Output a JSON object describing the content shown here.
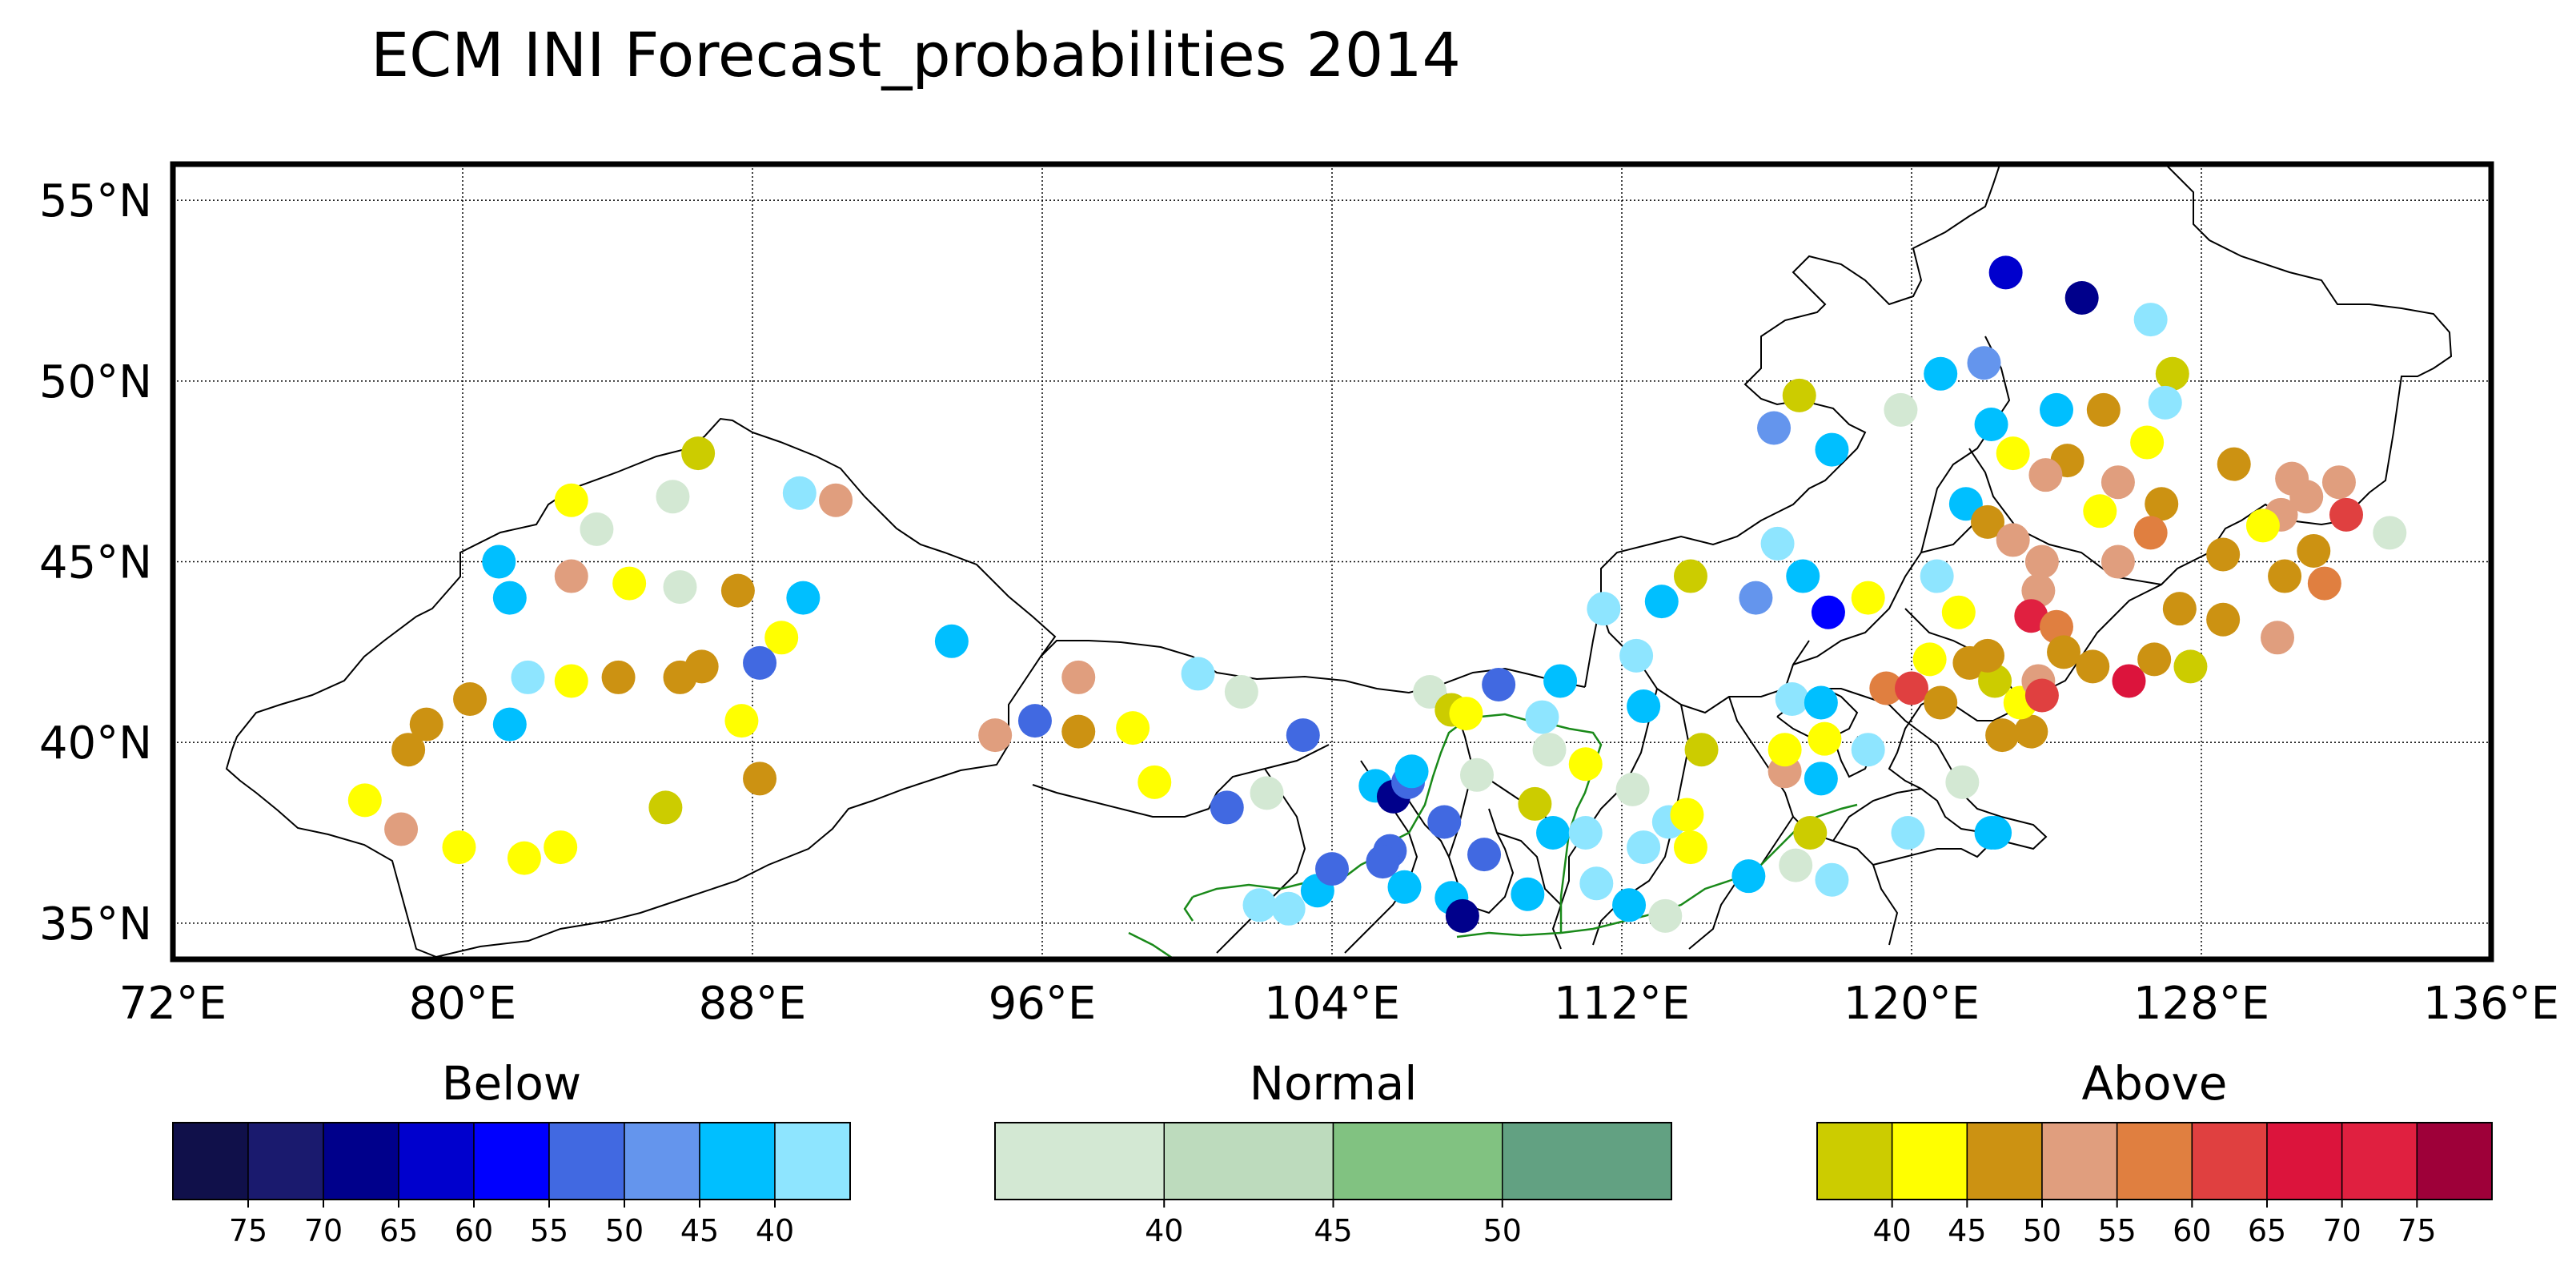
{
  "title": "ECM INI Forecast_probabilities 2014",
  "map": {
    "lon_range": [
      72,
      136
    ],
    "lat_range": [
      34,
      56
    ],
    "lon_ticks": [
      {
        "value": 72,
        "label": "72°E"
      },
      {
        "value": 80,
        "label": "80°E"
      },
      {
        "value": 88,
        "label": "88°E"
      },
      {
        "value": 96,
        "label": "96°E"
      },
      {
        "value": 104,
        "label": "104°E"
      },
      {
        "value": 112,
        "label": "112°E"
      },
      {
        "value": 120,
        "label": "120°E"
      },
      {
        "value": 128,
        "label": "128°E"
      },
      {
        "value": 136,
        "label": "136°E"
      }
    ],
    "lat_ticks": [
      {
        "value": 55,
        "label": "55°N"
      },
      {
        "value": 50,
        "label": "50°N"
      },
      {
        "value": 45,
        "label": "45°N"
      },
      {
        "value": 40,
        "label": "40°N"
      },
      {
        "value": 35,
        "label": "35°N"
      }
    ],
    "grid": true,
    "boundary_color": "#000000",
    "river_color": "#1a8a1a"
  },
  "colors": {
    "B75": "#10104a",
    "B70": "#1a1a6e",
    "B65": "#00008b",
    "B60": "#0000cd",
    "B55": "#0000ff",
    "B50": "#4169e1",
    "B45": "#6495ed",
    "B40": "#00bfff",
    "B35": "#8ee5ff",
    "N35": "#d3e8d3",
    "N40": "#bddbbd",
    "N45": "#81c281",
    "N50": "#62a182",
    "A35": "#cccc00",
    "A40": "#ffff00",
    "A45": "#cc9212",
    "A50": "#e09e7e",
    "A55": "#e07f40",
    "A60": "#e04040",
    "A65": "#dc143c",
    "A70": "#e02040",
    "A75": "#9e0039"
  },
  "colorbars": [
    {
      "label": "Below",
      "swatches": [
        "B75",
        "B70",
        "B65",
        "B60",
        "B55",
        "B50",
        "B45",
        "B40",
        "B35"
      ],
      "ticks": [
        "75",
        "70",
        "65",
        "60",
        "55",
        "50",
        "45",
        "40"
      ]
    },
    {
      "label": "Normal",
      "swatches": [
        "N35",
        "N40",
        "N45",
        "N50"
      ],
      "ticks": [
        "40",
        "45",
        "50"
      ]
    },
    {
      "label": "Above",
      "swatches": [
        "A35",
        "A40",
        "A45",
        "A50",
        "A55",
        "A60",
        "A65",
        "A70",
        "A75"
      ],
      "ticks": [
        "40",
        "45",
        "50",
        "55",
        "60",
        "65",
        "70",
        "75"
      ]
    }
  ],
  "stations": [
    {
      "lon": 83.0,
      "lat": 46.7,
      "c": "A40"
    },
    {
      "lon": 83.7,
      "lat": 45.9,
      "c": "N35"
    },
    {
      "lon": 85.8,
      "lat": 46.8,
      "c": "N35"
    },
    {
      "lon": 86.5,
      "lat": 48.0,
      "c": "A35"
    },
    {
      "lon": 89.3,
      "lat": 46.9,
      "c": "B35"
    },
    {
      "lon": 90.3,
      "lat": 46.7,
      "c": "A50"
    },
    {
      "lon": 81.0,
      "lat": 45.0,
      "c": "B40"
    },
    {
      "lon": 81.3,
      "lat": 44.0,
      "c": "B40"
    },
    {
      "lon": 83.0,
      "lat": 44.6,
      "c": "A50"
    },
    {
      "lon": 84.6,
      "lat": 44.4,
      "c": "A40"
    },
    {
      "lon": 86.0,
      "lat": 44.3,
      "c": "N35"
    },
    {
      "lon": 87.6,
      "lat": 44.2,
      "c": "A45"
    },
    {
      "lon": 89.4,
      "lat": 44.0,
      "c": "B40"
    },
    {
      "lon": 88.8,
      "lat": 42.9,
      "c": "A40"
    },
    {
      "lon": 88.2,
      "lat": 42.2,
      "c": "B50"
    },
    {
      "lon": 86.6,
      "lat": 42.1,
      "c": "A45"
    },
    {
      "lon": 86.0,
      "lat": 41.8,
      "c": "A45"
    },
    {
      "lon": 84.3,
      "lat": 41.8,
      "c": "A45"
    },
    {
      "lon": 83.0,
      "lat": 41.7,
      "c": "A40"
    },
    {
      "lon": 81.8,
      "lat": 41.8,
      "c": "B35"
    },
    {
      "lon": 80.2,
      "lat": 41.2,
      "c": "A45"
    },
    {
      "lon": 81.3,
      "lat": 40.5,
      "c": "B40"
    },
    {
      "lon": 79.0,
      "lat": 40.5,
      "c": "A45"
    },
    {
      "lon": 78.5,
      "lat": 39.8,
      "c": "A45"
    },
    {
      "lon": 87.7,
      "lat": 40.6,
      "c": "A40"
    },
    {
      "lon": 88.2,
      "lat": 39.0,
      "c": "A45"
    },
    {
      "lon": 77.3,
      "lat": 38.4,
      "c": "A40"
    },
    {
      "lon": 78.3,
      "lat": 37.6,
      "c": "A50"
    },
    {
      "lon": 79.9,
      "lat": 37.1,
      "c": "A40"
    },
    {
      "lon": 81.7,
      "lat": 36.8,
      "c": "A40"
    },
    {
      "lon": 82.7,
      "lat": 37.1,
      "c": "A40"
    },
    {
      "lon": 85.6,
      "lat": 38.2,
      "c": "A35"
    },
    {
      "lon": 93.5,
      "lat": 42.8,
      "c": "B40"
    },
    {
      "lon": 94.7,
      "lat": 40.2,
      "c": "A50"
    },
    {
      "lon": 95.8,
      "lat": 40.6,
      "c": "B50"
    },
    {
      "lon": 97.0,
      "lat": 41.8,
      "c": "A50"
    },
    {
      "lon": 97.0,
      "lat": 40.3,
      "c": "A45"
    },
    {
      "lon": 100.3,
      "lat": 41.9,
      "c": "B35"
    },
    {
      "lon": 101.5,
      "lat": 41.4,
      "c": "N35"
    },
    {
      "lon": 98.5,
      "lat": 40.4,
      "c": "A40"
    },
    {
      "lon": 99.1,
      "lat": 38.9,
      "c": "A40"
    },
    {
      "lon": 101.1,
      "lat": 38.2,
      "c": "B50"
    },
    {
      "lon": 102.2,
      "lat": 38.6,
      "c": "N35"
    },
    {
      "lon": 103.2,
      "lat": 40.2,
      "c": "B50"
    },
    {
      "lon": 102.0,
      "lat": 35.5,
      "c": "B35"
    },
    {
      "lon": 102.8,
      "lat": 35.4,
      "c": "B35"
    },
    {
      "lon": 103.6,
      "lat": 35.9,
      "c": "B40"
    },
    {
      "lon": 104.0,
      "lat": 36.5,
      "c": "B50"
    },
    {
      "lon": 105.6,
      "lat": 37.0,
      "c": "B50"
    },
    {
      "lon": 105.4,
      "lat": 36.7,
      "c": "B50"
    },
    {
      "lon": 105.2,
      "lat": 38.8,
      "c": "B40"
    },
    {
      "lon": 105.7,
      "lat": 38.5,
      "c": "B65"
    },
    {
      "lon": 106.1,
      "lat": 38.9,
      "c": "B50"
    },
    {
      "lon": 106.2,
      "lat": 39.2,
      "c": "B40"
    },
    {
      "lon": 106.0,
      "lat": 36.0,
      "c": "B40"
    },
    {
      "lon": 106.7,
      "lat": 41.4,
      "c": "N35"
    },
    {
      "lon": 107.3,
      "lat": 40.9,
      "c": "A35"
    },
    {
      "lon": 107.7,
      "lat": 40.8,
      "c": "A40"
    },
    {
      "lon": 108.6,
      "lat": 41.6,
      "c": "B50"
    },
    {
      "lon": 107.1,
      "lat": 37.8,
      "c": "B50"
    },
    {
      "lon": 108.0,
      "lat": 39.1,
      "c": "N35"
    },
    {
      "lon": 108.2,
      "lat": 36.9,
      "c": "B50"
    },
    {
      "lon": 107.3,
      "lat": 35.7,
      "c": "B40"
    },
    {
      "lon": 107.6,
      "lat": 35.2,
      "c": "B65"
    },
    {
      "lon": 109.4,
      "lat": 35.8,
      "c": "B40"
    },
    {
      "lon": 110.3,
      "lat": 41.7,
      "c": "B40"
    },
    {
      "lon": 109.8,
      "lat": 40.7,
      "c": "B35"
    },
    {
      "lon": 109.6,
      "lat": 38.3,
      "c": "A35"
    },
    {
      "lon": 110.1,
      "lat": 37.5,
      "c": "B40"
    },
    {
      "lon": 110.0,
      "lat": 39.8,
      "c": "N35"
    },
    {
      "lon": 111.0,
      "lat": 39.4,
      "c": "A40"
    },
    {
      "lon": 111.0,
      "lat": 37.5,
      "c": "B35"
    },
    {
      "lon": 111.3,
      "lat": 36.1,
      "c": "B35"
    },
    {
      "lon": 112.2,
      "lat": 35.5,
      "c": "B40"
    },
    {
      "lon": 111.5,
      "lat": 43.7,
      "c": "B35"
    },
    {
      "lon": 112.4,
      "lat": 42.4,
      "c": "B35"
    },
    {
      "lon": 113.1,
      "lat": 43.9,
      "c": "B40"
    },
    {
      "lon": 112.6,
      "lat": 41.0,
      "c": "B40"
    },
    {
      "lon": 112.3,
      "lat": 38.7,
      "c": "N35"
    },
    {
      "lon": 112.6,
      "lat": 37.1,
      "c": "B35"
    },
    {
      "lon": 113.3,
      "lat": 37.8,
      "c": "B35"
    },
    {
      "lon": 113.8,
      "lat": 38.0,
      "c": "A40"
    },
    {
      "lon": 113.9,
      "lat": 37.1,
      "c": "A40"
    },
    {
      "lon": 113.2,
      "lat": 35.2,
      "c": "N35"
    },
    {
      "lon": 113.9,
      "lat": 44.6,
      "c": "A35"
    },
    {
      "lon": 115.7,
      "lat": 44.0,
      "c": "B45"
    },
    {
      "lon": 116.3,
      "lat": 45.5,
      "c": "B35"
    },
    {
      "lon": 114.2,
      "lat": 39.8,
      "c": "A35"
    },
    {
      "lon": 115.5,
      "lat": 36.3,
      "c": "B40"
    },
    {
      "lon": 116.5,
      "lat": 39.2,
      "c": "A50"
    },
    {
      "lon": 116.5,
      "lat": 39.8,
      "c": "A40"
    },
    {
      "lon": 116.7,
      "lat": 41.2,
      "c": "B35"
    },
    {
      "lon": 117.0,
      "lat": 44.6,
      "c": "B40"
    },
    {
      "lon": 117.7,
      "lat": 43.6,
      "c": "B55"
    },
    {
      "lon": 117.5,
      "lat": 39.0,
      "c": "B40"
    },
    {
      "lon": 117.5,
      "lat": 41.1,
      "c": "B40"
    },
    {
      "lon": 117.6,
      "lat": 40.1,
      "c": "A40"
    },
    {
      "lon": 117.2,
      "lat": 37.5,
      "c": "A35"
    },
    {
      "lon": 116.8,
      "lat": 36.6,
      "c": "N35"
    },
    {
      "lon": 117.8,
      "lat": 36.2,
      "c": "B35"
    },
    {
      "lon": 118.8,
      "lat": 44.0,
      "c": "A40"
    },
    {
      "lon": 118.8,
      "lat": 39.8,
      "c": "B35"
    },
    {
      "lon": 119.3,
      "lat": 41.5,
      "c": "A55"
    },
    {
      "lon": 120.0,
      "lat": 41.5,
      "c": "A60"
    },
    {
      "lon": 119.9,
      "lat": 37.5,
      "c": "B35"
    },
    {
      "lon": 120.7,
      "lat": 44.6,
      "c": "B35"
    },
    {
      "lon": 121.3,
      "lat": 43.6,
      "c": "A40"
    },
    {
      "lon": 120.5,
      "lat": 42.3,
      "c": "A40"
    },
    {
      "lon": 120.8,
      "lat": 41.1,
      "c": "A45"
    },
    {
      "lon": 121.6,
      "lat": 42.2,
      "c": "A45"
    },
    {
      "lon": 122.3,
      "lat": 41.7,
      "c": "A35"
    },
    {
      "lon": 122.1,
      "lat": 42.4,
      "c": "A45"
    },
    {
      "lon": 121.4,
      "lat": 38.9,
      "c": "N35"
    },
    {
      "lon": 122.5,
      "lat": 40.2,
      "c": "A45"
    },
    {
      "lon": 123.3,
      "lat": 40.3,
      "c": "A45"
    },
    {
      "lon": 123.0,
      "lat": 41.1,
      "c": "A40"
    },
    {
      "lon": 123.5,
      "lat": 41.7,
      "c": "A50"
    },
    {
      "lon": 123.6,
      "lat": 41.3,
      "c": "A60"
    },
    {
      "lon": 122.3,
      "lat": 37.5,
      "c": "B40"
    },
    {
      "lon": 116.2,
      "lat": 48.7,
      "c": "B45"
    },
    {
      "lon": 116.9,
      "lat": 49.6,
      "c": "A35"
    },
    {
      "lon": 117.8,
      "lat": 48.1,
      "c": "B40"
    },
    {
      "lon": 119.7,
      "lat": 49.2,
      "c": "N35"
    },
    {
      "lon": 120.8,
      "lat": 50.2,
      "c": "B40"
    },
    {
      "lon": 122.0,
      "lat": 50.5,
      "c": "B45"
    },
    {
      "lon": 122.6,
      "lat": 53.0,
      "c": "B60"
    },
    {
      "lon": 124.7,
      "lat": 52.3,
      "c": "B65"
    },
    {
      "lon": 126.6,
      "lat": 51.7,
      "c": "B35"
    },
    {
      "lon": 127.2,
      "lat": 50.2,
      "c": "A35"
    },
    {
      "lon": 127.0,
      "lat": 49.4,
      "c": "B35"
    },
    {
      "lon": 125.3,
      "lat": 49.2,
      "c": "A45"
    },
    {
      "lon": 124.0,
      "lat": 49.2,
      "c": "B40"
    },
    {
      "lon": 122.2,
      "lat": 48.8,
      "c": "B40"
    },
    {
      "lon": 122.8,
      "lat": 48.0,
      "c": "A40"
    },
    {
      "lon": 124.3,
      "lat": 47.8,
      "c": "A45"
    },
    {
      "lon": 123.7,
      "lat": 47.4,
      "c": "A50"
    },
    {
      "lon": 125.7,
      "lat": 47.2,
      "c": "A50"
    },
    {
      "lon": 126.5,
      "lat": 48.3,
      "c": "A40"
    },
    {
      "lon": 126.9,
      "lat": 46.6,
      "c": "A45"
    },
    {
      "lon": 128.9,
      "lat": 47.7,
      "c": "A45"
    },
    {
      "lon": 130.2,
      "lat": 46.3,
      "c": "A50"
    },
    {
      "lon": 130.5,
      "lat": 47.3,
      "c": "A50"
    },
    {
      "lon": 131.8,
      "lat": 47.2,
      "c": "A50"
    },
    {
      "lon": 130.9,
      "lat": 46.8,
      "c": "A50"
    },
    {
      "lon": 132.0,
      "lat": 46.3,
      "c": "A60"
    },
    {
      "lon": 133.2,
      "lat": 45.8,
      "c": "N35"
    },
    {
      "lon": 121.5,
      "lat": 46.6,
      "c": "B40"
    },
    {
      "lon": 122.1,
      "lat": 46.1,
      "c": "A45"
    },
    {
      "lon": 122.8,
      "lat": 45.6,
      "c": "A50"
    },
    {
      "lon": 123.6,
      "lat": 45.0,
      "c": "A50"
    },
    {
      "lon": 123.5,
      "lat": 44.2,
      "c": "A50"
    },
    {
      "lon": 125.2,
      "lat": 46.4,
      "c": "A40"
    },
    {
      "lon": 125.7,
      "lat": 45.0,
      "c": "A50"
    },
    {
      "lon": 126.6,
      "lat": 45.8,
      "c": "A55"
    },
    {
      "lon": 128.6,
      "lat": 45.2,
      "c": "A45"
    },
    {
      "lon": 129.7,
      "lat": 46.0,
      "c": "A40"
    },
    {
      "lon": 130.3,
      "lat": 44.6,
      "c": "A45"
    },
    {
      "lon": 131.1,
      "lat": 45.3,
      "c": "A45"
    },
    {
      "lon": 131.4,
      "lat": 44.4,
      "c": "A55"
    },
    {
      "lon": 127.4,
      "lat": 43.7,
      "c": "A45"
    },
    {
      "lon": 128.6,
      "lat": 43.4,
      "c": "A45"
    },
    {
      "lon": 130.1,
      "lat": 42.9,
      "c": "A50"
    },
    {
      "lon": 123.3,
      "lat": 43.5,
      "c": "A70"
    },
    {
      "lon": 124.0,
      "lat": 43.2,
      "c": "A55"
    },
    {
      "lon": 124.2,
      "lat": 42.5,
      "c": "A45"
    },
    {
      "lon": 125.0,
      "lat": 42.1,
      "c": "A45"
    },
    {
      "lon": 126.0,
      "lat": 41.7,
      "c": "A65"
    },
    {
      "lon": 126.7,
      "lat": 42.3,
      "c": "A45"
    },
    {
      "lon": 127.7,
      "lat": 42.1,
      "c": "A35"
    },
    {
      "lon": 122.2,
      "lat": 37.5,
      "c": "B40"
    }
  ]
}
